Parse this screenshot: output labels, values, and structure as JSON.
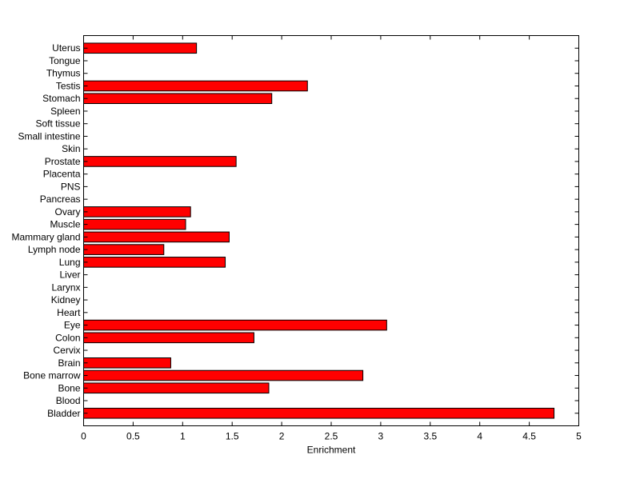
{
  "chart_data": {
    "type": "bar",
    "orientation": "horizontal",
    "title": "",
    "xlabel": "Enrichment",
    "ylabel": "",
    "xlim": [
      0,
      5
    ],
    "xticks": [
      0,
      0.5,
      1,
      1.5,
      2,
      2.5,
      3,
      3.5,
      4,
      4.5,
      5
    ],
    "bar_color": "#ff0000",
    "bar_edge_color": "#000000",
    "grid": false,
    "categories": [
      "Bladder",
      "Blood",
      "Bone",
      "Bone marrow",
      "Brain",
      "Cervix",
      "Colon",
      "Eye",
      "Heart",
      "Kidney",
      "Larynx",
      "Liver",
      "Lung",
      "Lymph node",
      "Mammary gland",
      "Muscle",
      "Ovary",
      "Pancreas",
      "PNS",
      "Placenta",
      "Prostate",
      "Skin",
      "Small intestine",
      "Soft tissue",
      "Spleen",
      "Stomach",
      "Testis",
      "Thymus",
      "Tongue",
      "Uterus"
    ],
    "values": [
      4.75,
      0,
      1.87,
      2.82,
      0.88,
      0,
      1.72,
      3.06,
      0,
      0,
      0,
      0,
      1.43,
      0.81,
      1.47,
      1.03,
      1.08,
      0,
      0,
      0,
      1.54,
      0,
      0,
      0,
      0,
      1.9,
      2.26,
      0,
      0,
      1.14
    ]
  }
}
